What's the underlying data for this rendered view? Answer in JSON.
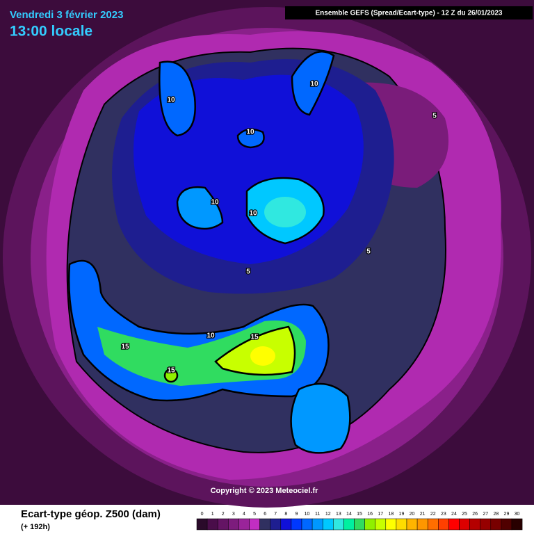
{
  "header": {
    "date": "Vendredi 3 février 2023",
    "time": "13:00 locale",
    "model": "Ensemble GEFS  (Spread/Ecart-type) - 12 Z du 26/01/2023"
  },
  "copyright": "Copyright © 2023 Meteociel.fr",
  "contour_labels": [
    "10",
    "10",
    "10",
    "10",
    "10",
    "10",
    "5",
    "5",
    "5",
    "15",
    "15",
    "15"
  ],
  "legend": {
    "title": "Ecart-type géop. Z500 (dam)",
    "subtitle": "(+ 192h)",
    "labels": [
      0,
      1,
      2,
      3,
      4,
      5,
      6,
      7,
      8,
      9,
      10,
      11,
      12,
      13,
      14,
      15,
      16,
      17,
      18,
      19,
      20,
      21,
      22,
      23,
      24,
      25,
      26,
      27,
      28,
      29,
      30
    ],
    "colors": [
      "#2a0a2a",
      "#4a0d4a",
      "#641464",
      "#7d1c7d",
      "#9a249a",
      "#c22ec2",
      "#303060",
      "#1e1e90",
      "#1010d8",
      "#0038ff",
      "#0068ff",
      "#0098ff",
      "#00c8ff",
      "#30e8e0",
      "#00f0a0",
      "#30dc60",
      "#90f000",
      "#c8ff00",
      "#ffff00",
      "#ffdc00",
      "#ffb400",
      "#ff9600",
      "#ff6e00",
      "#ff4000",
      "#ff0000",
      "#dc0000",
      "#b40000",
      "#960000",
      "#780000",
      "#500000",
      "#280000"
    ]
  }
}
